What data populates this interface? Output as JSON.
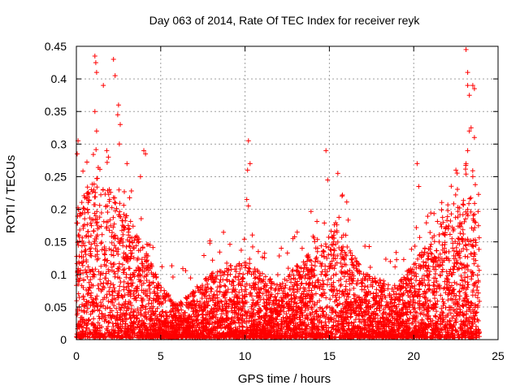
{
  "chart_data": {
    "type": "scatter",
    "title": "Day 063 of 2014, Rate Of TEC Index for receiver reyk",
    "xlabel": "GPS time / hours",
    "ylabel": "ROTI / TECUs",
    "xlim": [
      0,
      25
    ],
    "ylim": [
      0,
      0.45
    ],
    "xticks": [
      "0",
      "5",
      "10",
      "15",
      "20",
      "25"
    ],
    "yticks": [
      "0",
      "0.05",
      "0.1",
      "0.15",
      "0.2",
      "0.25",
      "0.3",
      "0.35",
      "0.4",
      "0.45"
    ],
    "grid": true,
    "marker": "+",
    "series_color": "#ff0000",
    "density_profile": [
      {
        "x": 0.0,
        "typical_max": 0.2
      },
      {
        "x": 1.0,
        "typical_max": 0.25
      },
      {
        "x": 2.5,
        "typical_max": 0.22
      },
      {
        "x": 4.0,
        "typical_max": 0.14
      },
      {
        "x": 5.0,
        "typical_max": 0.08
      },
      {
        "x": 6.0,
        "typical_max": 0.05
      },
      {
        "x": 8.0,
        "typical_max": 0.1
      },
      {
        "x": 10.0,
        "typical_max": 0.12
      },
      {
        "x": 12.0,
        "typical_max": 0.08
      },
      {
        "x": 14.0,
        "typical_max": 0.14
      },
      {
        "x": 15.5,
        "typical_max": 0.18
      },
      {
        "x": 17.0,
        "typical_max": 0.1
      },
      {
        "x": 19.0,
        "typical_max": 0.08
      },
      {
        "x": 21.0,
        "typical_max": 0.15
      },
      {
        "x": 22.5,
        "typical_max": 0.2
      },
      {
        "x": 23.7,
        "typical_max": 0.22
      }
    ],
    "outliers": [
      {
        "x": 0.1,
        "y": 0.305
      },
      {
        "x": 0.05,
        "y": 0.285
      },
      {
        "x": 1.1,
        "y": 0.435
      },
      {
        "x": 1.15,
        "y": 0.425
      },
      {
        "x": 1.2,
        "y": 0.41
      },
      {
        "x": 1.6,
        "y": 0.39
      },
      {
        "x": 1.1,
        "y": 0.35
      },
      {
        "x": 1.2,
        "y": 0.32
      },
      {
        "x": 2.2,
        "y": 0.43
      },
      {
        "x": 2.3,
        "y": 0.405
      },
      {
        "x": 2.5,
        "y": 0.36
      },
      {
        "x": 2.45,
        "y": 0.345
      },
      {
        "x": 2.6,
        "y": 0.33
      },
      {
        "x": 2.55,
        "y": 0.3
      },
      {
        "x": 1.8,
        "y": 0.29
      },
      {
        "x": 1.9,
        "y": 0.28
      },
      {
        "x": 3.0,
        "y": 0.27
      },
      {
        "x": 4.0,
        "y": 0.29
      },
      {
        "x": 4.1,
        "y": 0.285
      },
      {
        "x": 3.8,
        "y": 0.25
      },
      {
        "x": 10.2,
        "y": 0.305
      },
      {
        "x": 10.3,
        "y": 0.27
      },
      {
        "x": 10.15,
        "y": 0.26
      },
      {
        "x": 10.1,
        "y": 0.215
      },
      {
        "x": 10.2,
        "y": 0.205
      },
      {
        "x": 14.8,
        "y": 0.29
      },
      {
        "x": 15.5,
        "y": 0.255
      },
      {
        "x": 14.9,
        "y": 0.245
      },
      {
        "x": 20.2,
        "y": 0.27
      },
      {
        "x": 20.3,
        "y": 0.235
      },
      {
        "x": 22.5,
        "y": 0.26
      },
      {
        "x": 23.1,
        "y": 0.445
      },
      {
        "x": 23.2,
        "y": 0.41
      },
      {
        "x": 23.2,
        "y": 0.39
      },
      {
        "x": 23.5,
        "y": 0.39
      },
      {
        "x": 23.6,
        "y": 0.385
      },
      {
        "x": 23.3,
        "y": 0.375
      },
      {
        "x": 23.4,
        "y": 0.325
      },
      {
        "x": 23.3,
        "y": 0.32
      },
      {
        "x": 23.6,
        "y": 0.31
      },
      {
        "x": 23.2,
        "y": 0.29
      },
      {
        "x": 23.1,
        "y": 0.27
      },
      {
        "x": 23.5,
        "y": 0.25
      }
    ]
  }
}
